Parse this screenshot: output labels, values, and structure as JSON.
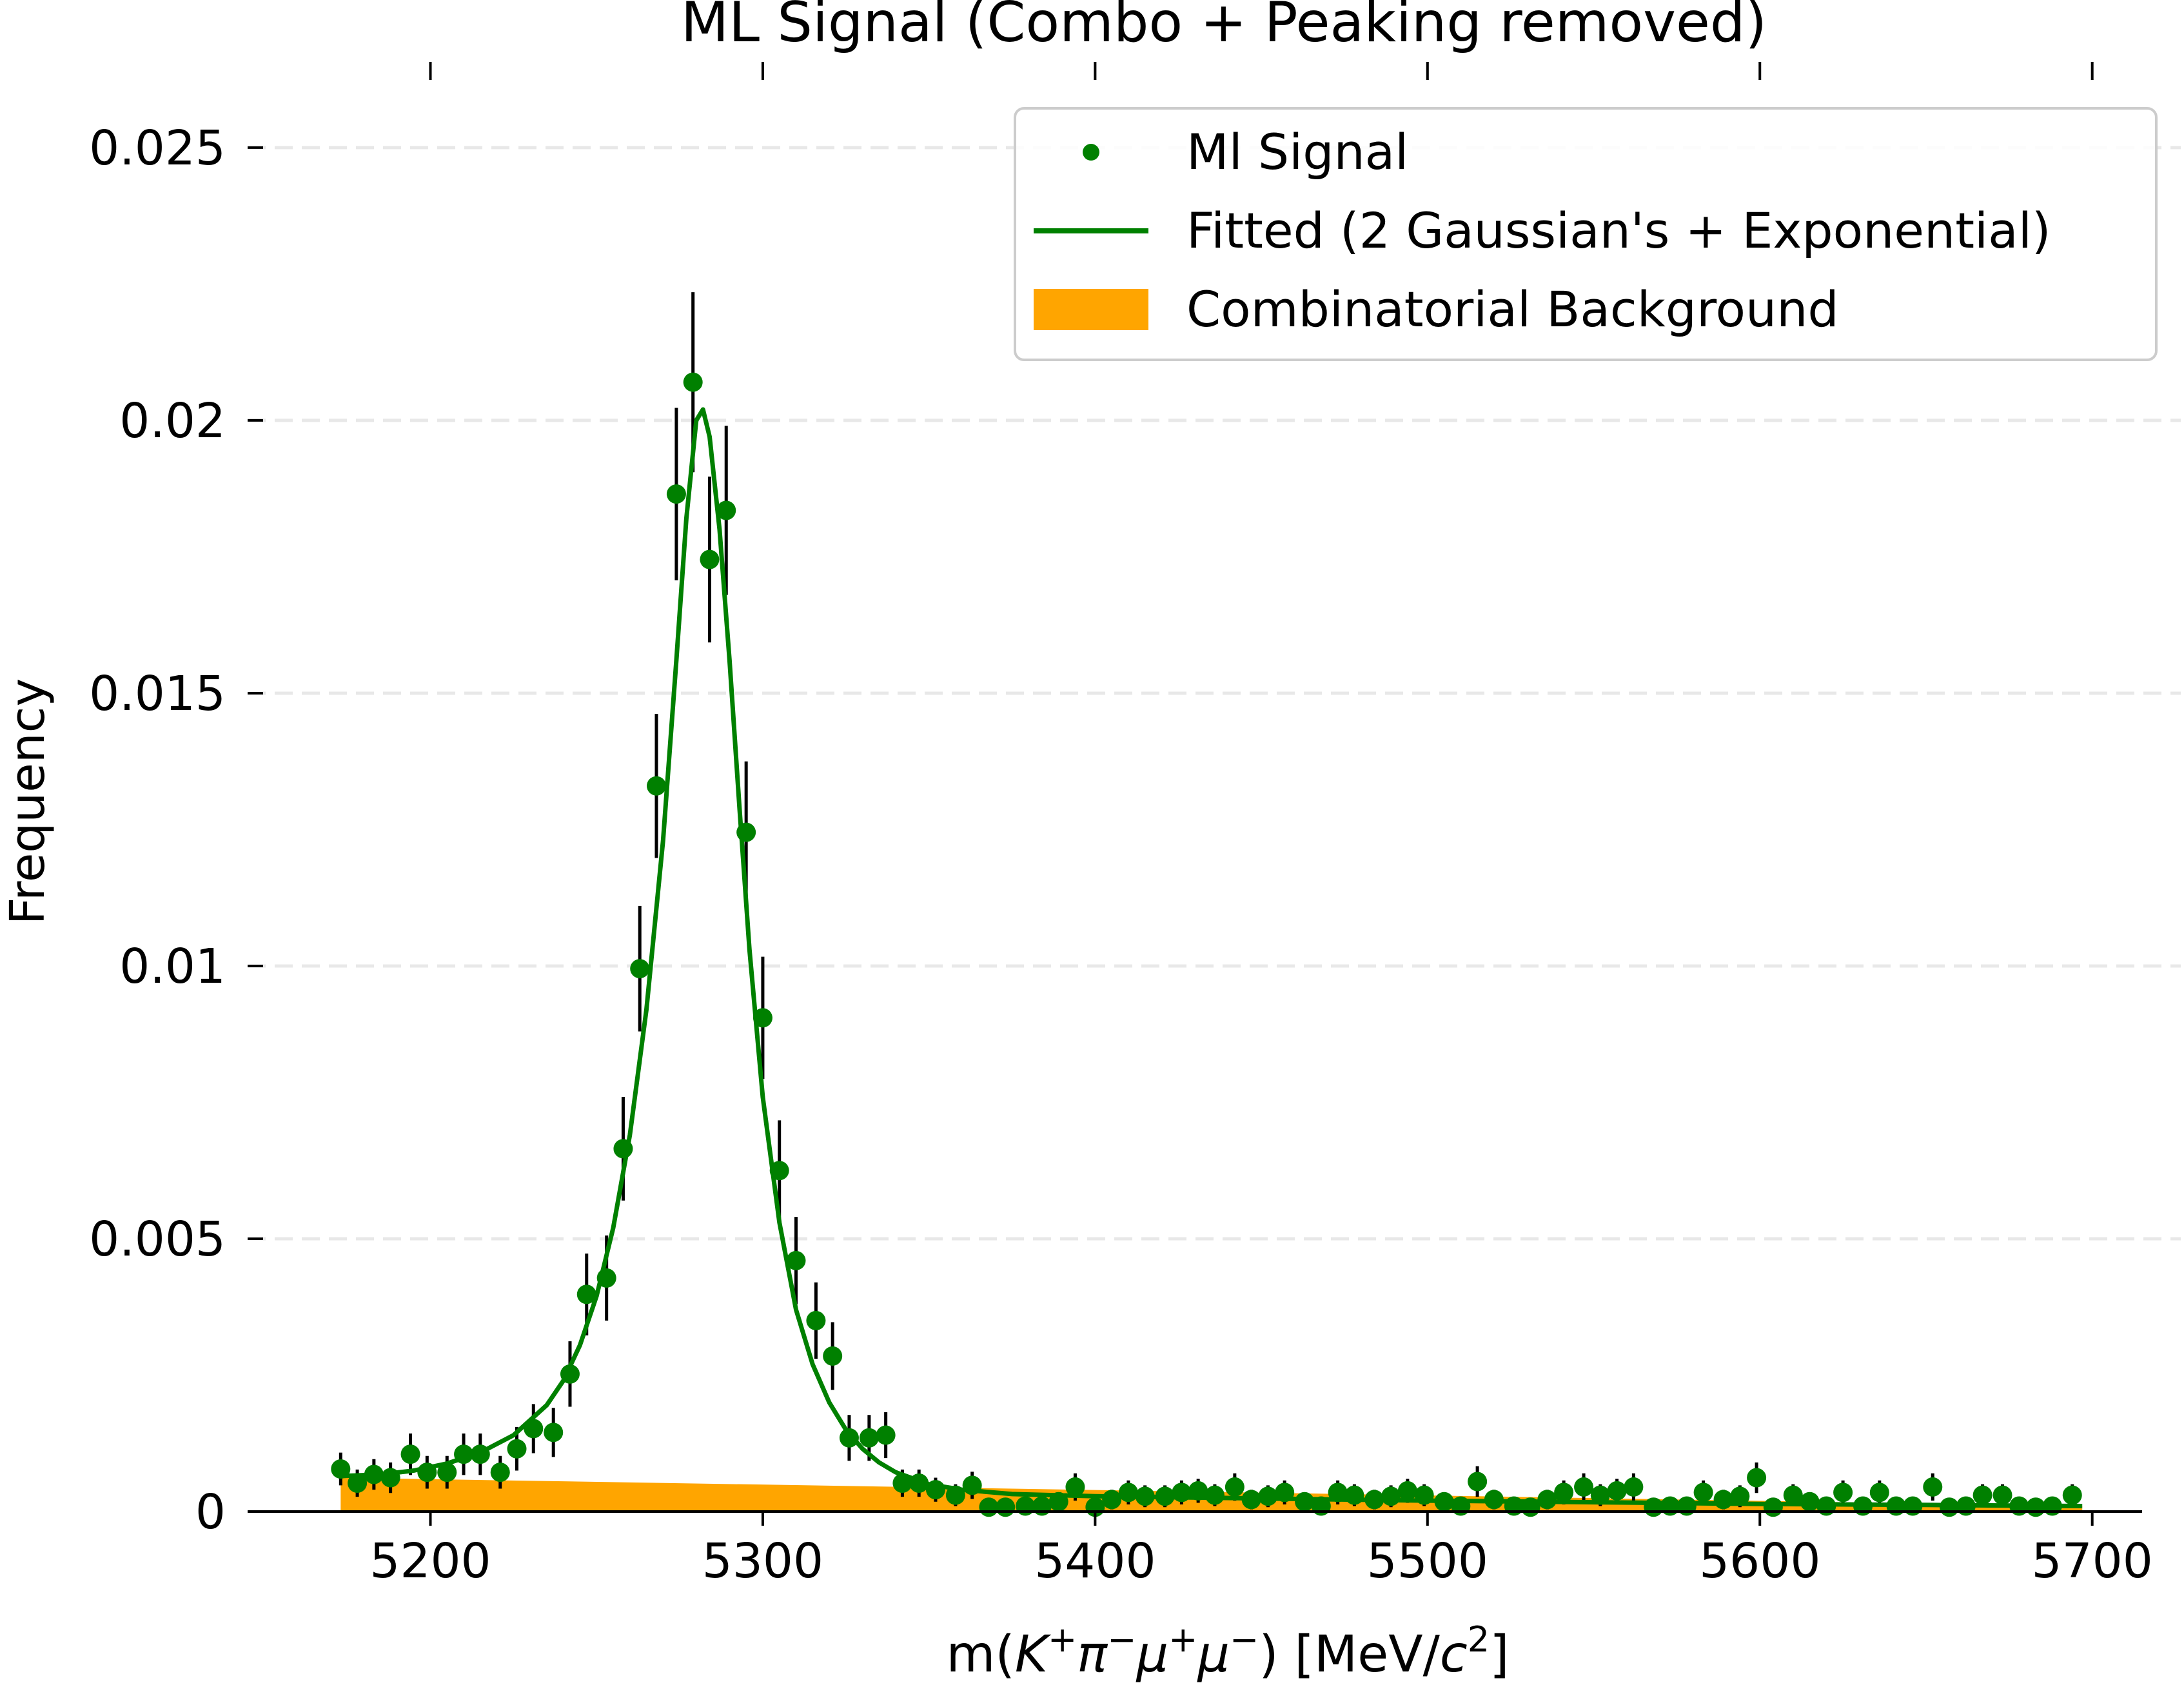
{
  "chart_data": {
    "type": "scatter",
    "title": "ML Signal (Combo + Peaking removed)",
    "xlabel": {
      "prefix": "m(",
      "k": "K",
      "pi": "π",
      "mu": "μ",
      "mu2": "μ",
      "suffix": ") [MeV/",
      "c": "c",
      "exp": "2",
      "close": "]"
    },
    "ylabel": "Frequency",
    "xlim": [
      5145,
      5715
    ],
    "ylim": [
      0,
      0.0265
    ],
    "x_ticks": [
      {
        "value": 5200,
        "label": "5200"
      },
      {
        "value": 5300,
        "label": "5300"
      },
      {
        "value": 5400,
        "label": "5400"
      },
      {
        "value": 5500,
        "label": "5500"
      },
      {
        "value": 5600,
        "label": "5600"
      },
      {
        "value": 5700,
        "label": "5700"
      }
    ],
    "y_ticks": [
      {
        "value": 0,
        "label": "0"
      },
      {
        "value": 0.005,
        "label": "0.005"
      },
      {
        "value": 0.01,
        "label": "0.01"
      },
      {
        "value": 0.015,
        "label": "0.015"
      },
      {
        "value": 0.02,
        "label": "0.02"
      },
      {
        "value": 0.025,
        "label": "0.025"
      }
    ],
    "grid": {
      "y": true,
      "style": "dashed"
    },
    "legend": {
      "placement": "top-right",
      "entries": [
        {
          "label": "Ml Signal",
          "kind": "marker",
          "color": "#008000"
        },
        {
          "label": "Fitted (2 Gaussian's + Exponential)",
          "kind": "line",
          "color": "#008000"
        },
        {
          "label": "Combinatorial Background",
          "kind": "patch",
          "color": "#ffa500"
        }
      ]
    },
    "colors": {
      "signal": "#008000",
      "fit": "#008000",
      "background": "#ffa500",
      "errorbar": "#000000"
    },
    "signal": {
      "x": [
        5173,
        5178,
        5183,
        5188,
        5194,
        5199,
        5205,
        5210,
        5215,
        5221,
        5226,
        5231,
        5237,
        5242,
        5247,
        5253,
        5258,
        5263,
        5268,
        5274,
        5279,
        5284,
        5289,
        5295,
        5300,
        5305,
        5310,
        5316,
        5321,
        5326,
        5332,
        5337,
        5342,
        5347,
        5352,
        5358,
        5363,
        5368,
        5373,
        5379,
        5384,
        5389,
        5394,
        5400,
        5405,
        5410,
        5415,
        5421,
        5426,
        5431,
        5436,
        5442,
        5447,
        5452,
        5457,
        5463,
        5468,
        5473,
        5478,
        5484,
        5489,
        5494,
        5499,
        5505,
        5510,
        5515,
        5520,
        5526,
        5531,
        5536,
        5541,
        5547,
        5552,
        5557,
        5562,
        5568,
        5573,
        5578,
        5583,
        5589,
        5594,
        5599,
        5604,
        5610,
        5615,
        5620,
        5625,
        5631,
        5636,
        5641,
        5646,
        5652,
        5657,
        5662,
        5667,
        5673,
        5678,
        5683,
        5688,
        5694
      ],
      "y": [
        0.00078,
        0.00052,
        0.00068,
        0.00062,
        0.00105,
        0.00072,
        0.00072,
        0.00105,
        0.00105,
        0.00072,
        0.00115,
        0.00152,
        0.00145,
        0.00252,
        0.00398,
        0.00428,
        0.00665,
        0.00995,
        0.0133,
        0.01865,
        0.0207,
        0.01745,
        0.01835,
        0.01245,
        0.00905,
        0.00625,
        0.0046,
        0.0035,
        0.00285,
        0.00135,
        0.00135,
        0.0014,
        0.00052,
        0.00052,
        0.0004,
        0.0003,
        0.00048,
        8e-05,
        8e-05,
        0.0001,
        0.0001,
        0.00018,
        0.00045,
        8e-05,
        0.00022,
        0.00035,
        0.00028,
        0.00028,
        0.00035,
        0.00038,
        0.0003,
        0.00045,
        0.00022,
        0.00028,
        0.00035,
        0.00018,
        0.0001,
        0.00035,
        0.0003,
        0.00022,
        0.00028,
        0.00038,
        0.0003,
        0.00018,
        0.0001,
        0.00055,
        0.00022,
        0.0001,
        8e-05,
        0.00022,
        0.00035,
        0.00045,
        0.0003,
        0.00038,
        0.00045,
        8e-05,
        0.0001,
        0.0001,
        0.00035,
        0.00022,
        0.00028,
        0.00062,
        8e-05,
        0.0003,
        0.00018,
        0.0001,
        0.00035,
        0.0001,
        0.00035,
        0.0001,
        0.0001,
        0.00045,
        8e-05,
        0.0001,
        0.0003,
        0.0003,
        0.0001,
        8e-05,
        0.0001,
        0.0003
      ],
      "yerr": [
        0.0003,
        0.00025,
        0.00028,
        0.00028,
        0.00038,
        0.0003,
        0.0003,
        0.00038,
        0.00038,
        0.0003,
        0.0004,
        0.00045,
        0.00045,
        0.0006,
        0.00075,
        0.00078,
        0.00095,
        0.00115,
        0.00132,
        0.00158,
        0.00165,
        0.00152,
        0.00155,
        0.0013,
        0.00112,
        0.00092,
        0.0008,
        0.0007,
        0.00062,
        0.00042,
        0.00042,
        0.00042,
        0.00025,
        0.00025,
        0.00022,
        0.0002,
        0.00025,
        0.0001,
        0.0001,
        0.0001,
        0.0001,
        0.00015,
        0.00025,
        0.0001,
        0.00018,
        0.00022,
        0.0002,
        0.0002,
        0.00022,
        0.00022,
        0.0002,
        0.00025,
        0.00018,
        0.0002,
        0.00022,
        0.00015,
        0.0001,
        0.00022,
        0.0002,
        0.00018,
        0.0002,
        0.00022,
        0.0002,
        0.00015,
        0.0001,
        0.00028,
        0.00018,
        0.0001,
        0.0001,
        0.00018,
        0.00022,
        0.00025,
        0.0002,
        0.00022,
        0.00025,
        0.0001,
        0.0001,
        0.0001,
        0.00022,
        0.00018,
        0.0002,
        0.00028,
        0.0001,
        0.0002,
        0.00015,
        0.0001,
        0.00022,
        0.0001,
        0.00022,
        0.0001,
        0.0001,
        0.00025,
        0.0001,
        0.0001,
        0.0002,
        0.0002,
        0.0001,
        0.0001,
        0.0001,
        0.0002
      ]
    },
    "fit": {
      "x": [
        5173,
        5185,
        5195,
        5205,
        5215,
        5225,
        5235,
        5240,
        5245,
        5250,
        5255,
        5260,
        5265,
        5270,
        5274,
        5277,
        5280,
        5282,
        5284,
        5287,
        5290,
        5293,
        5296,
        5300,
        5305,
        5310,
        5315,
        5320,
        5325,
        5330,
        5335,
        5340,
        5350,
        5360,
        5375,
        5400,
        5450,
        5500,
        5550,
        5600,
        5650,
        5697
      ],
      "y": [
        0.00065,
        0.00068,
        0.00075,
        0.00088,
        0.00108,
        0.0014,
        0.00195,
        0.0024,
        0.00305,
        0.00395,
        0.0052,
        0.0069,
        0.0092,
        0.0123,
        0.0156,
        0.0182,
        0.02,
        0.0202,
        0.0197,
        0.018,
        0.0156,
        0.0129,
        0.0103,
        0.0076,
        0.0053,
        0.0037,
        0.0027,
        0.002,
        0.0015,
        0.00115,
        0.0009,
        0.00072,
        0.0005,
        0.0004,
        0.00032,
        0.00028,
        0.00024,
        0.0002,
        0.00017,
        0.00014,
        0.00012,
        0.0001
      ]
    },
    "background": {
      "x": [
        5173,
        5697
      ],
      "y": [
        0.00062,
        0.0001
      ]
    }
  }
}
